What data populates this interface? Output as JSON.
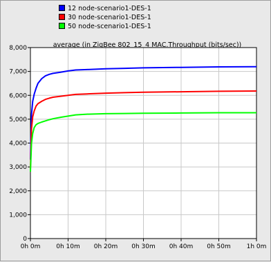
{
  "legend": [
    {
      "label": "12 node-scenario1-DES-1",
      "color": "#0000ff"
    },
    {
      "label": "30 node-scenario1-DES-1",
      "color": "#ff0000"
    },
    {
      "label": "50 node-scenario1-DES-1",
      "color": "#00ff00"
    }
  ],
  "chart_data": {
    "type": "line",
    "title": "average (in ZigBee 802_15_4 MAC.Throughput (bits/sec))",
    "xlabel": "",
    "ylabel": "",
    "x_unit": "minutes",
    "xlim": [
      0,
      60
    ],
    "ylim": [
      0,
      8000
    ],
    "x_ticks": [
      0,
      10,
      20,
      30,
      40,
      50,
      60
    ],
    "x_tick_labels": [
      "0h 0m",
      "0h 10m",
      "0h 20m",
      "0h 30m",
      "0h 40m",
      "0h 50m",
      "1h 0m"
    ],
    "y_ticks": [
      0,
      1000,
      2000,
      3000,
      4000,
      5000,
      6000,
      7000,
      8000
    ],
    "y_tick_labels": [
      "0",
      "1,000",
      "2,000",
      "3,000",
      "4,000",
      "5,000",
      "6,000",
      "7,000",
      "8,000"
    ],
    "grid": true,
    "legend_position": "top-left",
    "series": [
      {
        "name": "12 node-scenario1-DES-1",
        "color": "#0000ff",
        "x": [
          0,
          0.3,
          0.6,
          1,
          1.5,
          2,
          3,
          4,
          5,
          6,
          8,
          10,
          12,
          15,
          20,
          25,
          30,
          40,
          50,
          60
        ],
        "y": [
          3300,
          5200,
          5750,
          6050,
          6300,
          6500,
          6700,
          6820,
          6880,
          6920,
          6970,
          7020,
          7060,
          7080,
          7110,
          7130,
          7150,
          7170,
          7190,
          7200
        ]
      },
      {
        "name": "30 node-scenario1-DES-1",
        "color": "#ff0000",
        "x": [
          0,
          0.3,
          0.6,
          1,
          1.5,
          2,
          3,
          4,
          5,
          6,
          8,
          10,
          12,
          15,
          20,
          25,
          30,
          40,
          50,
          60
        ],
        "y": [
          2900,
          4600,
          5100,
          5350,
          5550,
          5650,
          5750,
          5830,
          5880,
          5920,
          5960,
          6000,
          6040,
          6060,
          6090,
          6110,
          6130,
          6150,
          6170,
          6180
        ]
      },
      {
        "name": "50 node-scenario1-DES-1",
        "color": "#00ff00",
        "x": [
          0,
          0.3,
          0.6,
          1,
          1.5,
          2,
          3,
          4,
          5,
          6,
          8,
          10,
          12,
          15,
          20,
          25,
          30,
          40,
          50,
          60
        ],
        "y": [
          2800,
          4000,
          4400,
          4650,
          4770,
          4820,
          4880,
          4930,
          4980,
          5020,
          5080,
          5130,
          5180,
          5210,
          5230,
          5240,
          5250,
          5260,
          5270,
          5270
        ]
      }
    ]
  }
}
